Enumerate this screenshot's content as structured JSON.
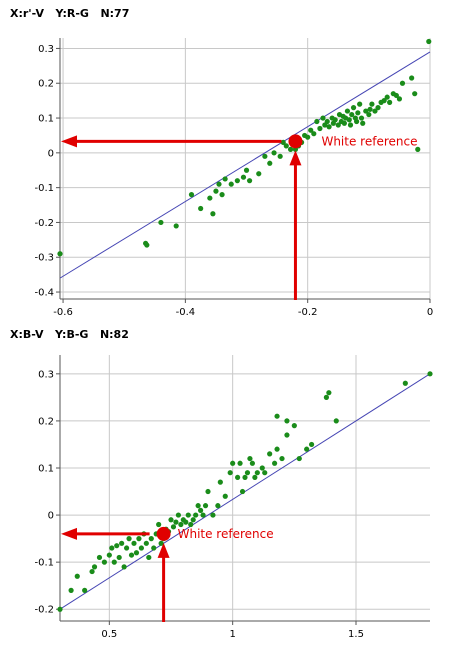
{
  "panels": [
    {
      "header": {
        "x_label": "X:r'-V",
        "y_label": "Y:R-G",
        "n_label": "N:77"
      }
    },
    {
      "header": {
        "x_label": "X:B-V",
        "y_label": "Y:B-G",
        "n_label": "N:82"
      }
    }
  ],
  "colors": {
    "points": "#1a8c1a",
    "fit_line": "#4646b4",
    "annotation": "#e00000",
    "grid": "#c8c8c8",
    "axis": "#555555"
  },
  "chart_data": [
    {
      "type": "scatter",
      "title": "",
      "xlabel": "X:r'-V",
      "ylabel": "Y:R-G",
      "n": 77,
      "xlim": [
        -0.605,
        0.0
      ],
      "ylim": [
        -0.42,
        0.33
      ],
      "x_ticks": [
        {
          "v": -0.6,
          "label": "-0.6"
        },
        {
          "v": -0.4,
          "label": "-0.4"
        },
        {
          "v": -0.2,
          "label": "-0.2"
        },
        {
          "v": 0,
          "label": "0"
        }
      ],
      "y_ticks": [
        {
          "v": 0.3,
          "label": "0.3"
        },
        {
          "v": 0.2,
          "label": "0.2"
        },
        {
          "v": 0.1,
          "label": "0.1"
        },
        {
          "v": 0,
          "label": "0"
        },
        {
          "v": -0.1,
          "label": "-0.1"
        },
        {
          "v": -0.2,
          "label": "-0.2"
        },
        {
          "v": -0.3,
          "label": "-0.3"
        },
        {
          "v": -0.4,
          "label": "-0.4"
        }
      ],
      "grid": true,
      "fit_line": {
        "x": [
          -0.605,
          0.0
        ],
        "y": [
          -0.36,
          0.29
        ]
      },
      "white_reference": {
        "x": -0.22,
        "y": 0.033,
        "label": "White reference"
      },
      "points": [
        [
          -0.605,
          -0.29
        ],
        [
          -0.465,
          -0.26
        ],
        [
          -0.463,
          -0.265
        ],
        [
          -0.44,
          -0.2
        ],
        [
          -0.415,
          -0.21
        ],
        [
          -0.39,
          -0.12
        ],
        [
          -0.375,
          -0.16
        ],
        [
          -0.36,
          -0.13
        ],
        [
          -0.355,
          -0.175
        ],
        [
          -0.35,
          -0.11
        ],
        [
          -0.345,
          -0.09
        ],
        [
          -0.34,
          -0.12
        ],
        [
          -0.335,
          -0.075
        ],
        [
          -0.325,
          -0.09
        ],
        [
          -0.315,
          -0.08
        ],
        [
          -0.305,
          -0.07
        ],
        [
          -0.3,
          -0.05
        ],
        [
          -0.295,
          -0.08
        ],
        [
          -0.28,
          -0.06
        ],
        [
          -0.27,
          -0.01
        ],
        [
          -0.262,
          -0.03
        ],
        [
          -0.255,
          0.0
        ],
        [
          -0.245,
          -0.01
        ],
        [
          -0.24,
          0.03
        ],
        [
          -0.235,
          0.02
        ],
        [
          -0.228,
          0.01
        ],
        [
          -0.22,
          0.01
        ],
        [
          -0.215,
          0.02
        ],
        [
          -0.21,
          0.03
        ],
        [
          -0.205,
          0.05
        ],
        [
          -0.2,
          0.045
        ],
        [
          -0.195,
          0.065
        ],
        [
          -0.19,
          0.055
        ],
        [
          -0.185,
          0.09
        ],
        [
          -0.18,
          0.07
        ],
        [
          -0.175,
          0.1
        ],
        [
          -0.172,
          0.08
        ],
        [
          -0.168,
          0.09
        ],
        [
          -0.165,
          0.075
        ],
        [
          -0.16,
          0.1
        ],
        [
          -0.158,
          0.085
        ],
        [
          -0.155,
          0.095
        ],
        [
          -0.15,
          0.08
        ],
        [
          -0.148,
          0.11
        ],
        [
          -0.145,
          0.09
        ],
        [
          -0.142,
          0.105
        ],
        [
          -0.14,
          0.085
        ],
        [
          -0.138,
          0.1
        ],
        [
          -0.135,
          0.12
        ],
        [
          -0.132,
          0.095
        ],
        [
          -0.13,
          0.08
        ],
        [
          -0.128,
          0.11
        ],
        [
          -0.125,
          0.13
        ],
        [
          -0.122,
          0.1
        ],
        [
          -0.12,
          0.09
        ],
        [
          -0.118,
          0.115
        ],
        [
          -0.115,
          0.14
        ],
        [
          -0.112,
          0.1
        ],
        [
          -0.11,
          0.085
        ],
        [
          -0.105,
          0.12
        ],
        [
          -0.1,
          0.11
        ],
        [
          -0.098,
          0.125
        ],
        [
          -0.095,
          0.14
        ],
        [
          -0.09,
          0.12
        ],
        [
          -0.085,
          0.13
        ],
        [
          -0.08,
          0.145
        ],
        [
          -0.075,
          0.15
        ],
        [
          -0.07,
          0.16
        ],
        [
          -0.066,
          0.145
        ],
        [
          -0.06,
          0.17
        ],
        [
          -0.055,
          0.165
        ],
        [
          -0.05,
          0.155
        ],
        [
          -0.045,
          0.2
        ],
        [
          -0.03,
          0.215
        ],
        [
          -0.025,
          0.17
        ],
        [
          -0.02,
          0.01
        ],
        [
          -0.002,
          0.32
        ]
      ]
    },
    {
      "type": "scatter",
      "title": "",
      "xlabel": "X:B-V",
      "ylabel": "Y:B-G",
      "n": 82,
      "xlim": [
        0.3,
        1.8
      ],
      "ylim": [
        -0.225,
        0.34
      ],
      "x_ticks": [
        {
          "v": 0.5,
          "label": "0.5"
        },
        {
          "v": 1,
          "label": "1"
        },
        {
          "v": 1.5,
          "label": "1.5"
        }
      ],
      "y_ticks": [
        {
          "v": 0.3,
          "label": "0.3"
        },
        {
          "v": 0.2,
          "label": "0.2"
        },
        {
          "v": 0.1,
          "label": "0.1"
        },
        {
          "v": 0,
          "label": "0"
        },
        {
          "v": -0.1,
          "label": "-0.1"
        },
        {
          "v": -0.2,
          "label": "-0.2"
        }
      ],
      "grid": true,
      "fit_line": {
        "x": [
          0.3,
          1.8
        ],
        "y": [
          -0.2,
          0.3
        ]
      },
      "white_reference": {
        "x": 0.72,
        "y": -0.04,
        "label": "White reference"
      },
      "points": [
        [
          0.3,
          -0.2
        ],
        [
          0.345,
          -0.16
        ],
        [
          0.37,
          -0.13
        ],
        [
          0.4,
          -0.16
        ],
        [
          0.43,
          -0.12
        ],
        [
          0.44,
          -0.11
        ],
        [
          0.46,
          -0.09
        ],
        [
          0.48,
          -0.1
        ],
        [
          0.5,
          -0.085
        ],
        [
          0.51,
          -0.07
        ],
        [
          0.52,
          -0.1
        ],
        [
          0.53,
          -0.065
        ],
        [
          0.54,
          -0.09
        ],
        [
          0.55,
          -0.06
        ],
        [
          0.56,
          -0.11
        ],
        [
          0.57,
          -0.07
        ],
        [
          0.58,
          -0.05
        ],
        [
          0.59,
          -0.085
        ],
        [
          0.6,
          -0.06
        ],
        [
          0.61,
          -0.08
        ],
        [
          0.62,
          -0.05
        ],
        [
          0.63,
          -0.07
        ],
        [
          0.64,
          -0.04
        ],
        [
          0.65,
          -0.06
        ],
        [
          0.66,
          -0.09
        ],
        [
          0.67,
          -0.05
        ],
        [
          0.68,
          -0.07
        ],
        [
          0.69,
          -0.04
        ],
        [
          0.7,
          -0.02
        ],
        [
          0.71,
          -0.06
        ],
        [
          0.72,
          -0.05
        ],
        [
          0.73,
          -0.03
        ],
        [
          0.74,
          -0.035
        ],
        [
          0.75,
          -0.01
        ],
        [
          0.76,
          -0.025
        ],
        [
          0.77,
          -0.015
        ],
        [
          0.78,
          0.0
        ],
        [
          0.79,
          -0.02
        ],
        [
          0.8,
          -0.01
        ],
        [
          0.81,
          -0.015
        ],
        [
          0.82,
          0.0
        ],
        [
          0.83,
          -0.02
        ],
        [
          0.84,
          -0.01
        ],
        [
          0.85,
          0.0
        ],
        [
          0.86,
          0.02
        ],
        [
          0.87,
          0.01
        ],
        [
          0.88,
          0.0
        ],
        [
          0.89,
          0.02
        ],
        [
          0.9,
          0.05
        ],
        [
          0.92,
          0.0
        ],
        [
          0.94,
          0.02
        ],
        [
          0.95,
          0.07
        ],
        [
          0.97,
          0.04
        ],
        [
          0.99,
          0.09
        ],
        [
          1.0,
          0.11
        ],
        [
          1.02,
          0.08
        ],
        [
          1.03,
          0.11
        ],
        [
          1.04,
          0.05
        ],
        [
          1.05,
          0.08
        ],
        [
          1.06,
          0.09
        ],
        [
          1.07,
          0.12
        ],
        [
          1.08,
          0.11
        ],
        [
          1.09,
          0.08
        ],
        [
          1.1,
          0.09
        ],
        [
          1.12,
          0.1
        ],
        [
          1.13,
          0.09
        ],
        [
          1.15,
          0.13
        ],
        [
          1.17,
          0.11
        ],
        [
          1.18,
          0.14
        ],
        [
          1.2,
          0.12
        ],
        [
          1.22,
          0.17
        ],
        [
          1.25,
          0.19
        ],
        [
          1.27,
          0.12
        ],
        [
          1.3,
          0.14
        ],
        [
          1.32,
          0.15
        ],
        [
          1.18,
          0.21
        ],
        [
          1.22,
          0.2
        ],
        [
          1.38,
          0.25
        ],
        [
          1.39,
          0.26
        ],
        [
          1.42,
          0.2
        ],
        [
          1.7,
          0.28
        ],
        [
          1.8,
          0.3
        ]
      ]
    }
  ]
}
